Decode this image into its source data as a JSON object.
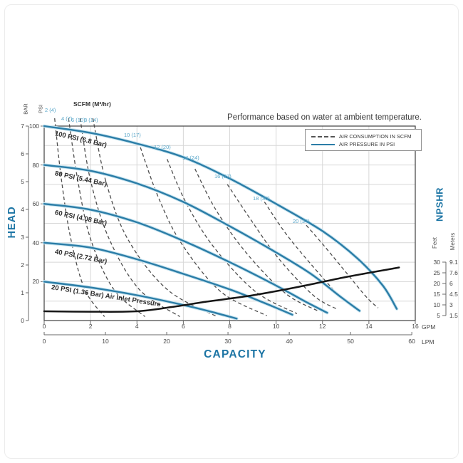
{
  "title": "Performance based on water at ambient temperature.",
  "legend": {
    "items": [
      {
        "label": "AIR CONSUMPTION IN SCFM",
        "style": "dashed"
      },
      {
        "label": "AIR PRESSURE IN PSI",
        "style": "solid"
      }
    ]
  },
  "colors": {
    "pressure_curve": "#2b7da7",
    "pressure_halo": "#c9e5f0",
    "consumption_curve": "#4d4d4d",
    "npshr_curve": "#161616",
    "axis_title_blue": "#1b74a4",
    "scfm_label_blue": "#58a6c9"
  },
  "chart_data": {
    "type": "line",
    "title": "Performance based on water at ambient temperature.",
    "scfm_header": "SCFM (M³/hr)",
    "x_axis": {
      "title": "CAPACITY",
      "gpm_unit": "GPM",
      "lpm_unit": "LPM",
      "gpm_ticks": [
        "0",
        "2",
        "4",
        "6",
        "8",
        "10",
        "12",
        "14",
        "16"
      ],
      "lpm_ticks": [
        "0",
        "10",
        "20",
        "30",
        "40",
        "50",
        "60"
      ],
      "gpm_range": [
        0,
        16
      ],
      "lpm_range": [
        0,
        60
      ]
    },
    "y_axis": {
      "title": "HEAD",
      "bar_unit": "BAR",
      "psi_unit": "PSI",
      "bar_ticks": [
        "7",
        "6",
        "5",
        "4",
        "3",
        "2",
        "1",
        "0"
      ],
      "psi_ticks": [
        "100",
        "80",
        "60",
        "40",
        "20"
      ],
      "psi_range": [
        0,
        100
      ],
      "bar_range": [
        0,
        7
      ],
      "grid": "on, every 10 PSI and every 2 GPM"
    },
    "right_axis": {
      "title": "NPSHR",
      "feet_label": "Feet",
      "meters_label": "Meters",
      "feet_ticks": [
        "30",
        "25",
        "20",
        "15",
        "10",
        "5"
      ],
      "meters_ticks": [
        "9.1",
        "7.6",
        "6",
        "4.5",
        "3",
        "1.5"
      ]
    },
    "pressure_curves": [
      {
        "label": "100 PSI (6.8 Bar)",
        "psi": 100,
        "points": [
          [
            0,
            100
          ],
          [
            2,
            96.5
          ],
          [
            4,
            91
          ],
          [
            6,
            84
          ],
          [
            8,
            73
          ],
          [
            10,
            60
          ],
          [
            12,
            46
          ],
          [
            13.5,
            32
          ],
          [
            14.6,
            18
          ],
          [
            15.2,
            6
          ]
        ]
      },
      {
        "label": "80 PSI (5.44 Bar)",
        "psi": 80,
        "points": [
          [
            0,
            80
          ],
          [
            2,
            77
          ],
          [
            4,
            70.5
          ],
          [
            6,
            61
          ],
          [
            8,
            48.5
          ],
          [
            10,
            35
          ],
          [
            11.5,
            24
          ],
          [
            12.8,
            12
          ],
          [
            13.6,
            5
          ]
        ]
      },
      {
        "label": "60 PSI (4.08 Bar)",
        "psi": 60,
        "points": [
          [
            0,
            60
          ],
          [
            2,
            57
          ],
          [
            4,
            50.5
          ],
          [
            6,
            41
          ],
          [
            8,
            30
          ],
          [
            10,
            18
          ],
          [
            11.3,
            9.5
          ],
          [
            12.2,
            4
          ]
        ]
      },
      {
        "label": "40 PSI (2.72 Bar)",
        "psi": 40,
        "points": [
          [
            0,
            40
          ],
          [
            2,
            37.5
          ],
          [
            4,
            31.5
          ],
          [
            6,
            24
          ],
          [
            8,
            16
          ],
          [
            9.5,
            9
          ],
          [
            10.7,
            3
          ]
        ]
      },
      {
        "label": "20 PSI (1.36 Bar) Air Inlet Pressure",
        "psi": 20,
        "points": [
          [
            0,
            20
          ],
          [
            2,
            17
          ],
          [
            4,
            13
          ],
          [
            6,
            8
          ],
          [
            7.2,
            4.5
          ],
          [
            8.3,
            1
          ]
        ]
      }
    ],
    "consumption_curves": [
      {
        "label": "2 (4)",
        "scfm": 2,
        "points": [
          [
            0.45,
            104
          ],
          [
            0.75,
            72
          ],
          [
            1.15,
            42
          ],
          [
            1.75,
            16
          ],
          [
            2.6,
            2
          ]
        ]
      },
      {
        "label": "4 (7)",
        "scfm": 4,
        "points": [
          [
            1.05,
            104
          ],
          [
            1.45,
            72
          ],
          [
            2.0,
            42
          ],
          [
            3.0,
            16
          ],
          [
            4.35,
            2
          ]
        ]
      },
      {
        "label": "6 (10)",
        "scfm": 6,
        "points": [
          [
            1.55,
            104
          ],
          [
            2.0,
            72
          ],
          [
            2.8,
            42
          ],
          [
            4.1,
            16
          ],
          [
            5.85,
            2
          ]
        ]
      },
      {
        "label": "8 (14)",
        "scfm": 8,
        "points": [
          [
            2.1,
            104
          ],
          [
            2.65,
            72
          ],
          [
            3.6,
            42
          ],
          [
            5.3,
            16
          ],
          [
            7.45,
            2
          ]
        ]
      },
      {
        "label": "10 (17)",
        "scfm": 10,
        "points": [
          [
            4.15,
            89
          ],
          [
            4.9,
            64
          ],
          [
            5.9,
            40
          ],
          [
            7.6,
            15
          ],
          [
            9.6,
            2.5
          ]
        ]
      },
      {
        "label": "12 (20)",
        "scfm": 12,
        "points": [
          [
            5.3,
            83
          ],
          [
            6.1,
            61
          ],
          [
            7.3,
            38
          ],
          [
            9.1,
            15
          ],
          [
            10.9,
            3.5
          ]
        ]
      },
      {
        "label": "14 (24)",
        "scfm": 14,
        "points": [
          [
            6.5,
            78
          ],
          [
            7.4,
            57
          ],
          [
            8.7,
            35
          ],
          [
            10.4,
            14
          ],
          [
            11.8,
            5
          ]
        ]
      },
      {
        "label": "16 (27)",
        "scfm": 16,
        "points": [
          [
            7.9,
            70
          ],
          [
            8.9,
            52
          ],
          [
            10.1,
            32
          ],
          [
            11.6,
            13
          ],
          [
            12.6,
            6
          ]
        ]
      },
      {
        "label": "18 (30)",
        "scfm": 18,
        "points": [
          [
            9.5,
            61
          ],
          [
            10.4,
            45
          ],
          [
            11.5,
            29
          ],
          [
            12.7,
            13
          ],
          [
            13.4,
            6
          ]
        ]
      },
      {
        "label": "20 (34)",
        "scfm": 20,
        "points": [
          [
            11.3,
            49
          ],
          [
            12.1,
            38
          ],
          [
            13.0,
            25
          ],
          [
            13.9,
            12
          ],
          [
            14.4,
            6.5
          ]
        ]
      }
    ],
    "npshr_curve": {
      "units": "gpm vs feet",
      "points": [
        [
          0,
          7
        ],
        [
          2,
          6.8
        ],
        [
          4,
          7
        ],
        [
          5.5,
          9
        ],
        [
          7,
          11.5
        ],
        [
          9,
          14.5
        ],
        [
          11,
          18.5
        ],
        [
          13,
          23
        ],
        [
          15.3,
          27.5
        ]
      ]
    }
  }
}
